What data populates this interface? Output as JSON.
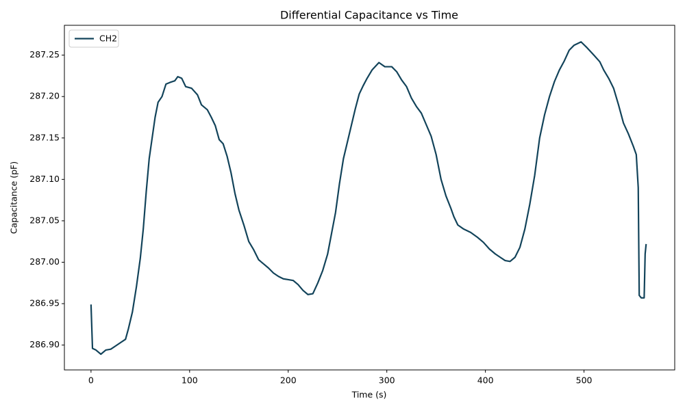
{
  "chart_data": {
    "type": "line",
    "title": "Differential Capacitance vs Time",
    "x_label": "Time (s)",
    "y_label": "Capacitance (pF)",
    "x": [
      0,
      1.5,
      5,
      10,
      15,
      20,
      25,
      30,
      35,
      38,
      42,
      46,
      50,
      53,
      56,
      59,
      62,
      65,
      68,
      72,
      76,
      80,
      85,
      88,
      92,
      96,
      102,
      108,
      112,
      118,
      122,
      126,
      130,
      134,
      138,
      142,
      146,
      150,
      155,
      160,
      165,
      170,
      175,
      180,
      185,
      190,
      195,
      200,
      205,
      210,
      215,
      220,
      225,
      230,
      235,
      240,
      244,
      248,
      252,
      256,
      260,
      264,
      268,
      272,
      276,
      280,
      285,
      292,
      298,
      305,
      310,
      315,
      320,
      325,
      330,
      335,
      340,
      345,
      350,
      355,
      360,
      365,
      368,
      372,
      378,
      385,
      392,
      398,
      404,
      410,
      415,
      420,
      425,
      430,
      435,
      440,
      445,
      450,
      455,
      460,
      465,
      470,
      475,
      480,
      485,
      490,
      497,
      503,
      510,
      516,
      520,
      525,
      530,
      535,
      540,
      545,
      550,
      553,
      555,
      556,
      558,
      561,
      562,
      563
    ],
    "series": [
      {
        "name": "CH2",
        "color": "#12435a",
        "values": [
          286.949,
          286.896,
          286.894,
          286.889,
          286.894,
          286.895,
          286.899,
          286.903,
          286.907,
          286.92,
          286.94,
          286.97,
          287.005,
          287.04,
          287.085,
          287.125,
          287.15,
          287.175,
          287.193,
          287.2,
          287.215,
          287.217,
          287.219,
          287.224,
          287.222,
          287.212,
          287.21,
          287.202,
          287.19,
          287.184,
          287.175,
          287.165,
          287.148,
          287.143,
          287.128,
          287.108,
          287.083,
          287.063,
          287.045,
          287.025,
          287.015,
          287.003,
          286.998,
          286.993,
          286.987,
          286.983,
          286.98,
          286.979,
          286.978,
          286.973,
          286.966,
          286.961,
          286.962,
          286.975,
          286.99,
          287.01,
          287.035,
          287.06,
          287.095,
          287.125,
          287.145,
          287.165,
          287.185,
          287.203,
          287.213,
          287.222,
          287.232,
          287.241,
          287.236,
          287.236,
          287.23,
          287.22,
          287.212,
          287.198,
          287.188,
          287.18,
          287.166,
          287.152,
          287.13,
          287.1,
          287.08,
          287.065,
          287.055,
          287.045,
          287.04,
          287.036,
          287.03,
          287.024,
          287.016,
          287.01,
          287.006,
          287.002,
          287.001,
          287.006,
          287.018,
          287.04,
          287.07,
          287.105,
          287.15,
          287.178,
          287.2,
          287.218,
          287.232,
          287.243,
          287.256,
          287.262,
          287.266,
          287.259,
          287.25,
          287.242,
          287.232,
          287.222,
          287.21,
          287.19,
          287.168,
          287.155,
          287.14,
          287.13,
          287.09,
          286.96,
          286.957,
          286.957,
          287.01,
          287.022
        ]
      }
    ],
    "xlim": [
      -27,
      592
    ],
    "ylim": [
      286.87,
      287.286
    ],
    "xticks": [
      0,
      100,
      200,
      300,
      400,
      500
    ],
    "yticks": [
      {
        "value": 286.9,
        "label": "286.90"
      },
      286.95,
      {
        "value": 287.0,
        "label": "287.00"
      },
      287.05,
      {
        "value": 287.1,
        "label": "287.10"
      },
      287.15,
      {
        "value": 287.2,
        "label": "287.20"
      },
      287.25
    ],
    "legend": "upper left"
  }
}
